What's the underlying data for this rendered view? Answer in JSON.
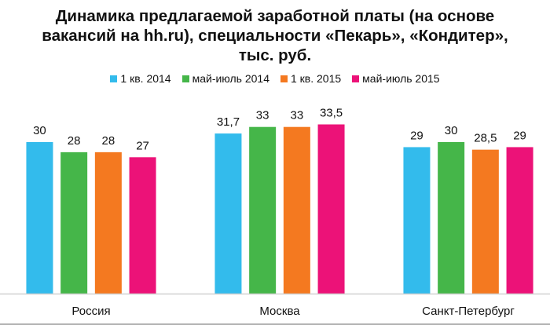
{
  "chart_data": {
    "type": "bar",
    "title_lines": [
      "Динамика предлагаемой заработной платы (на основе",
      "вакансий на hh.ru), специальности «Пекарь», «Кондитер»,",
      "тыс. руб."
    ],
    "categories": [
      "Россия",
      "Москва",
      "Санкт-Петербург"
    ],
    "series": [
      {
        "name": "1 кв. 2014",
        "color": "#33bbec",
        "values": [
          30,
          31.7,
          29
        ],
        "labels": [
          "30",
          "31,7",
          "29"
        ]
      },
      {
        "name": "май-июль 2014",
        "color": "#45b649",
        "values": [
          28,
          33,
          30
        ],
        "labels": [
          "28",
          "33",
          "30"
        ]
      },
      {
        "name": "1 кв. 2015",
        "color": "#f47920",
        "values": [
          28,
          33,
          28.5
        ],
        "labels": [
          "28",
          "33",
          "28,5"
        ]
      },
      {
        "name": "май-июль 2015",
        "color": "#ec1278",
        "values": [
          27,
          33.5,
          29
        ],
        "labels": [
          "27",
          "33,5",
          "29"
        ]
      }
    ],
    "ylim": [
      0,
      45
    ],
    "grid": false,
    "legend": "top"
  }
}
